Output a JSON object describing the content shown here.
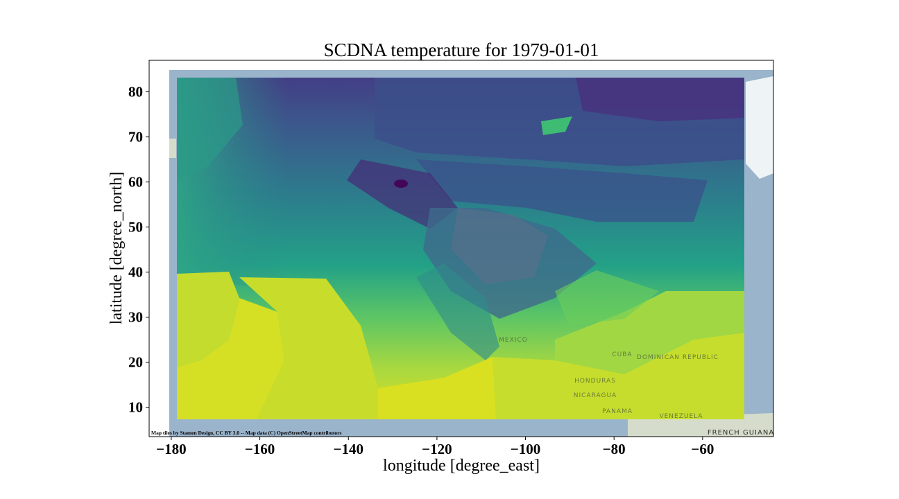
{
  "title": "SCDNA temperature for 1979-01-01",
  "xlabel": "longitude [degree_east]",
  "ylabel": "latitude [degree_north]",
  "attribution": "Map tiles by Stamen Design, CC BY 3.0 -- Map data (C) OpenStreetMap contributors",
  "basemap_labels": {
    "mexico": "MEXICO",
    "cuba": "CUBA",
    "dominican_republic": "DOMINICAN REPUBLIC",
    "honduras": "HONDURAS",
    "nicaragua": "NICARAGUA",
    "panama": "PANAMA",
    "venezuela": "VENEZUELA",
    "french_guiana": "FRENCH GUIANA"
  },
  "chart_data": {
    "type": "heatmap",
    "variable": "temperature",
    "date": "1979-01-01",
    "colormap": "viridis",
    "xlim": [
      -185,
      -44
    ],
    "ylim": [
      3.5,
      87
    ],
    "xticks": [
      -180,
      -160,
      -140,
      -120,
      -100,
      -80,
      -60
    ],
    "xtick_labels": [
      "−180",
      "−160",
      "−140",
      "−120",
      "−100",
      "−80",
      "−60"
    ],
    "yticks": [
      10,
      20,
      30,
      40,
      50,
      60,
      70,
      80
    ],
    "ytick_labels": [
      "10",
      "20",
      "30",
      "40",
      "50",
      "60",
      "70",
      "80"
    ],
    "data_extent": {
      "lon_min": -180,
      "lon_max": -52,
      "lat_min": 7.5,
      "lat_max": 83.5
    },
    "basemap_extent": {
      "lon_min": -180,
      "lon_max": -44,
      "lat_min": 3.5,
      "lat_max": 85
    },
    "colors": {
      "ocean": "#9ab4cb",
      "land": "#dfe6d4",
      "ice": "#eef4f6"
    }
  }
}
